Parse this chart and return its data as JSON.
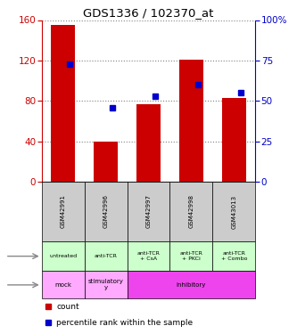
{
  "title": "GDS1336 / 102370_at",
  "samples": [
    "GSM42991",
    "GSM42996",
    "GSM42997",
    "GSM42998",
    "GSM43013"
  ],
  "counts": [
    155,
    40,
    77,
    121,
    83
  ],
  "percentiles": [
    73,
    46,
    53,
    60,
    55
  ],
  "ylim_left": [
    0,
    160
  ],
  "ylim_right": [
    0,
    100
  ],
  "yticks_left": [
    0,
    40,
    80,
    120,
    160
  ],
  "yticks_right": [
    0,
    25,
    50,
    75,
    100
  ],
  "bar_color": "#cc0000",
  "dot_color": "#0000cc",
  "agent_labels": [
    "untreated",
    "anti-TCR",
    "anti-TCR\n+ CsA",
    "anti-TCR\n+ PKCi",
    "anti-TCR\n+ Combo"
  ],
  "agent_bg": "#ccffcc",
  "sample_bg": "#cccccc",
  "left_axis_color": "#cc0000",
  "right_axis_color": "#0000cc",
  "protocol_data": [
    [
      0,
      0,
      "mock",
      "#ff88ff"
    ],
    [
      1,
      1,
      "stimulatory\ny",
      "#ff88ff"
    ],
    [
      2,
      4,
      "inhibitory",
      "#ee44ee"
    ]
  ],
  "mock_color": "#ffbbff",
  "stim_color": "#ffbbff",
  "inhib_color": "#ee44ee"
}
